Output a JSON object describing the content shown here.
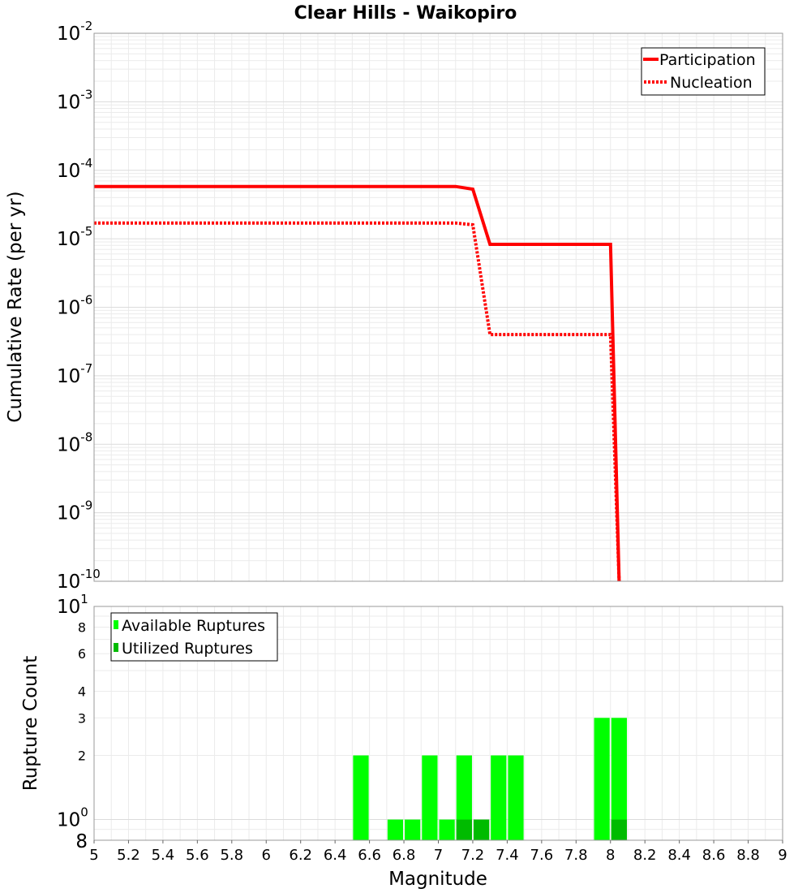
{
  "title": "Clear Hills - Waikopiro",
  "chart_data": [
    {
      "type": "line",
      "ylabel": "Cumulative Rate (per yr)",
      "yscale": "log",
      "ylim": [
        1e-10,
        0.01
      ],
      "xlim": [
        5,
        9
      ],
      "y_tick_exponents": [
        "-10",
        "-9",
        "-8",
        "-7",
        "-6",
        "-5",
        "-4",
        "-3",
        "-2"
      ],
      "legend": {
        "placement": "top-right"
      },
      "series": [
        {
          "name": "Participation",
          "color": "#ff0000",
          "style": "solid",
          "x": [
            5.0,
            7.1,
            7.2,
            7.3,
            8.0,
            8.05
          ],
          "y": [
            5.8e-05,
            5.8e-05,
            5.3e-05,
            8.3e-06,
            8.3e-06,
            1e-10
          ]
        },
        {
          "name": "Nucleation",
          "color": "#ff0000",
          "style": "dotted",
          "x": [
            5.0,
            7.1,
            7.2,
            7.3,
            8.0,
            8.05
          ],
          "y": [
            1.7e-05,
            1.7e-05,
            1.6e-05,
            4e-07,
            4e-07,
            1e-10
          ]
        }
      ]
    },
    {
      "type": "bar",
      "xlabel": "Magnitude",
      "ylabel": "Rupture Count",
      "yscale": "log",
      "ylim": [
        0.8,
        10
      ],
      "xlim": [
        5,
        9
      ],
      "bin_width": 0.1,
      "x_ticks": [
        "5",
        "5.2",
        "5.4",
        "5.6",
        "5.8",
        "6",
        "6.2",
        "6.4",
        "6.6",
        "6.8",
        "7",
        "7.2",
        "7.4",
        "7.6",
        "7.8",
        "8",
        "8.2",
        "8.4",
        "8.6",
        "8.8",
        "9"
      ],
      "y_minor_labels": [
        {
          "value": 8,
          "label": "8"
        },
        {
          "value": 6,
          "label": "6"
        },
        {
          "value": 4,
          "label": "4"
        },
        {
          "value": 3,
          "label": "3"
        },
        {
          "value": 2,
          "label": "2"
        }
      ],
      "y_bottom_label": "8",
      "y_decade_labels": [
        {
          "value": 10,
          "base": "10",
          "exp": "1"
        },
        {
          "value": 1,
          "base": "10",
          "exp": "0"
        }
      ],
      "legend": {
        "placement": "top-left"
      },
      "series": [
        {
          "name": "Available Ruptures",
          "color": "#00ff00",
          "x": [
            6.55,
            6.75,
            6.85,
            6.95,
            7.05,
            7.15,
            7.25,
            7.35,
            7.45,
            7.95,
            8.05
          ],
          "values": [
            2,
            1,
            1,
            2,
            1,
            2,
            1,
            2,
            2,
            3,
            3
          ]
        },
        {
          "name": "Utilized Ruptures",
          "color": "#00bb00",
          "x": [
            7.15,
            7.25,
            8.05
          ],
          "values": [
            1,
            1,
            1
          ]
        }
      ]
    }
  ]
}
